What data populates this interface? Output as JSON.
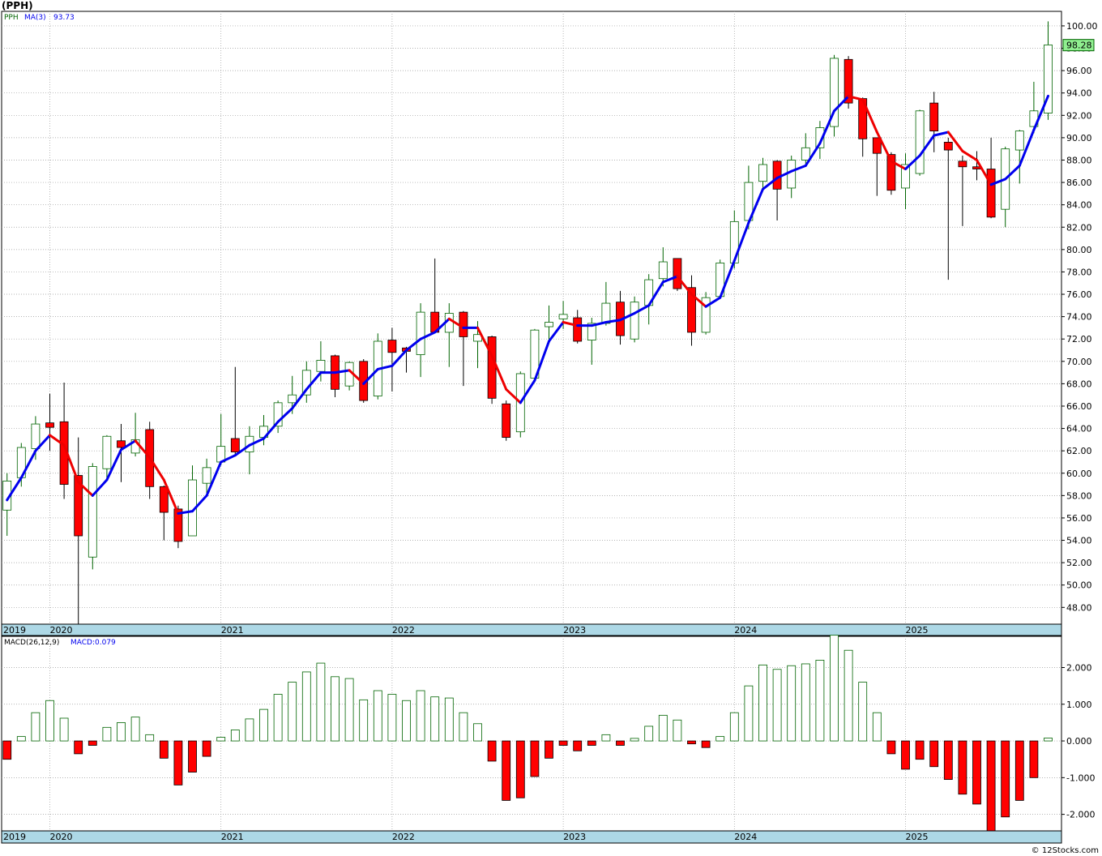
{
  "header": {
    "symbol_label": "(PPH)"
  },
  "credit": "© 12Stocks.com",
  "colors": {
    "up_candle": "#006400",
    "down_candle": "#ff0000",
    "ma_up": "#0000ee",
    "ma_down": "#ee0000",
    "axis_band": "#add8e6",
    "last_price_box": "#90ee90"
  },
  "chart_data": [
    {
      "type": "candlestick",
      "legend": {
        "symbol": "PPH",
        "ma_label": "MA(3)",
        "ma_value": "93.73"
      },
      "last_price_label": "98.28",
      "ylim": [
        46.5,
        101.3
      ],
      "y_ticks": [
        48,
        50,
        52,
        54,
        56,
        58,
        60,
        62,
        64,
        66,
        68,
        70,
        72,
        74,
        76,
        78,
        80,
        82,
        84,
        86,
        88,
        90,
        92,
        94,
        96,
        98,
        100
      ],
      "y_tick_labels": [
        "48.00",
        "50.00",
        "52.00",
        "54.00",
        "56.00",
        "58.00",
        "60.00",
        "62.00",
        "64.00",
        "66.00",
        "68.00",
        "70.00",
        "72.00",
        "74.00",
        "76.00",
        "78.00",
        "80.00",
        "82.00",
        "84.00",
        "86.00",
        "88.00",
        "90.00",
        "92.00",
        "94.00",
        "96.00",
        "98.00",
        "100.00"
      ],
      "x_labels": [
        {
          "label": "2019",
          "index": -3
        },
        {
          "label": "2020",
          "index": 0
        },
        {
          "label": "2021",
          "index": 12
        },
        {
          "label": "2022",
          "index": 24
        },
        {
          "label": "2023",
          "index": 36
        },
        {
          "label": "2024",
          "index": 48
        },
        {
          "label": "2025",
          "index": 60
        }
      ],
      "candles": [
        {
          "i": -3,
          "o": 56.7,
          "h": 60.0,
          "l": 54.4,
          "c": 59.3
        },
        {
          "i": -2,
          "o": 59.6,
          "h": 62.7,
          "l": 58.8,
          "c": 62.3
        },
        {
          "i": -1,
          "o": 62.2,
          "h": 65.1,
          "l": 61.2,
          "c": 64.4
        },
        {
          "i": 0,
          "o": 64.5,
          "h": 67.1,
          "l": 62.0,
          "c": 64.1
        },
        {
          "i": 1,
          "o": 64.6,
          "h": 68.1,
          "l": 57.7,
          "c": 59.0
        },
        {
          "i": 2,
          "o": 59.8,
          "h": 63.2,
          "l": 45.1,
          "c": 54.4
        },
        {
          "i": 3,
          "o": 52.5,
          "h": 60.9,
          "l": 51.4,
          "c": 60.6
        },
        {
          "i": 4,
          "o": 60.4,
          "h": 63.4,
          "l": 59.3,
          "c": 63.3
        },
        {
          "i": 5,
          "o": 62.9,
          "h": 64.4,
          "l": 59.2,
          "c": 62.3
        },
        {
          "i": 6,
          "o": 61.8,
          "h": 65.4,
          "l": 61.5,
          "c": 63.0
        },
        {
          "i": 7,
          "o": 63.9,
          "h": 64.6,
          "l": 57.7,
          "c": 58.8
        },
        {
          "i": 8,
          "o": 58.8,
          "h": 58.9,
          "l": 54.0,
          "c": 56.5
        },
        {
          "i": 9,
          "o": 56.8,
          "h": 57.1,
          "l": 53.3,
          "c": 53.9
        },
        {
          "i": 10,
          "o": 54.4,
          "h": 60.7,
          "l": 54.4,
          "c": 59.4
        },
        {
          "i": 11,
          "o": 59.1,
          "h": 61.3,
          "l": 58.2,
          "c": 60.5
        },
        {
          "i": 12,
          "o": 61.0,
          "h": 65.3,
          "l": 60.7,
          "c": 62.4
        },
        {
          "i": 13,
          "o": 63.1,
          "h": 69.5,
          "l": 61.7,
          "c": 61.9
        },
        {
          "i": 14,
          "o": 61.9,
          "h": 64.2,
          "l": 59.9,
          "c": 63.3
        },
        {
          "i": 15,
          "o": 63.2,
          "h": 65.2,
          "l": 62.5,
          "c": 64.2
        },
        {
          "i": 16,
          "o": 64.2,
          "h": 66.5,
          "l": 63.6,
          "c": 66.3
        },
        {
          "i": 17,
          "o": 66.3,
          "h": 68.7,
          "l": 65.3,
          "c": 67.0
        },
        {
          "i": 18,
          "o": 67.0,
          "h": 70.0,
          "l": 66.3,
          "c": 69.2
        },
        {
          "i": 19,
          "o": 69.1,
          "h": 71.8,
          "l": 68.2,
          "c": 70.1
        },
        {
          "i": 20,
          "o": 70.5,
          "h": 70.6,
          "l": 66.8,
          "c": 67.5
        },
        {
          "i": 21,
          "o": 67.8,
          "h": 70.0,
          "l": 67.4,
          "c": 69.9
        },
        {
          "i": 22,
          "o": 70.0,
          "h": 70.2,
          "l": 66.3,
          "c": 66.5
        },
        {
          "i": 23,
          "o": 66.9,
          "h": 72.5,
          "l": 66.6,
          "c": 71.8
        },
        {
          "i": 24,
          "o": 71.9,
          "h": 73.0,
          "l": 67.3,
          "c": 70.8
        },
        {
          "i": 25,
          "o": 71.2,
          "h": 71.3,
          "l": 69.0,
          "c": 70.9
        },
        {
          "i": 26,
          "o": 70.6,
          "h": 75.2,
          "l": 68.6,
          "c": 74.4
        },
        {
          "i": 27,
          "o": 74.4,
          "h": 79.2,
          "l": 72.7,
          "c": 72.6
        },
        {
          "i": 28,
          "o": 72.6,
          "h": 75.2,
          "l": 69.5,
          "c": 74.3
        },
        {
          "i": 29,
          "o": 74.4,
          "h": 74.5,
          "l": 67.8,
          "c": 72.2
        },
        {
          "i": 30,
          "o": 71.8,
          "h": 73.6,
          "l": 69.4,
          "c": 72.4
        },
        {
          "i": 31,
          "o": 72.2,
          "h": 72.3,
          "l": 66.2,
          "c": 66.7
        },
        {
          "i": 32,
          "o": 66.2,
          "h": 66.5,
          "l": 62.9,
          "c": 63.2
        },
        {
          "i": 33,
          "o": 63.7,
          "h": 69.1,
          "l": 63.2,
          "c": 68.9
        },
        {
          "i": 34,
          "o": 68.5,
          "h": 72.9,
          "l": 68.1,
          "c": 72.8
        },
        {
          "i": 35,
          "o": 73.1,
          "h": 75.0,
          "l": 71.8,
          "c": 73.5
        },
        {
          "i": 36,
          "o": 73.8,
          "h": 75.4,
          "l": 72.9,
          "c": 74.2
        },
        {
          "i": 37,
          "o": 73.9,
          "h": 74.6,
          "l": 71.6,
          "c": 71.8
        },
        {
          "i": 38,
          "o": 71.9,
          "h": 73.9,
          "l": 69.7,
          "c": 73.4
        },
        {
          "i": 39,
          "o": 73.4,
          "h": 77.1,
          "l": 73.2,
          "c": 75.2
        },
        {
          "i": 40,
          "o": 75.3,
          "h": 76.3,
          "l": 71.5,
          "c": 72.3
        },
        {
          "i": 41,
          "o": 72.0,
          "h": 75.8,
          "l": 71.7,
          "c": 75.3
        },
        {
          "i": 42,
          "o": 75.0,
          "h": 77.8,
          "l": 73.3,
          "c": 77.3
        },
        {
          "i": 43,
          "o": 77.4,
          "h": 80.2,
          "l": 76.7,
          "c": 78.9
        },
        {
          "i": 44,
          "o": 79.2,
          "h": 79.2,
          "l": 76.3,
          "c": 76.5
        },
        {
          "i": 45,
          "o": 76.6,
          "h": 77.7,
          "l": 71.4,
          "c": 72.6
        },
        {
          "i": 46,
          "o": 72.6,
          "h": 76.2,
          "l": 72.4,
          "c": 75.7
        },
        {
          "i": 47,
          "o": 75.8,
          "h": 79.1,
          "l": 75.6,
          "c": 78.8
        },
        {
          "i": 48,
          "o": 78.8,
          "h": 83.5,
          "l": 78.3,
          "c": 82.5
        },
        {
          "i": 49,
          "o": 82.6,
          "h": 87.5,
          "l": 81.8,
          "c": 86.0
        },
        {
          "i": 50,
          "o": 86.1,
          "h": 88.2,
          "l": 85.5,
          "c": 87.6
        },
        {
          "i": 51,
          "o": 87.9,
          "h": 88.0,
          "l": 82.6,
          "c": 85.4
        },
        {
          "i": 52,
          "o": 85.5,
          "h": 88.4,
          "l": 84.6,
          "c": 88.0
        },
        {
          "i": 53,
          "o": 88.0,
          "h": 90.4,
          "l": 87.5,
          "c": 89.1
        },
        {
          "i": 54,
          "o": 89.1,
          "h": 91.5,
          "l": 88.1,
          "c": 90.9
        },
        {
          "i": 55,
          "o": 91.0,
          "h": 97.4,
          "l": 90.1,
          "c": 97.1
        },
        {
          "i": 56,
          "o": 97.0,
          "h": 97.3,
          "l": 92.6,
          "c": 93.1
        },
        {
          "i": 57,
          "o": 93.5,
          "h": 93.6,
          "l": 88.3,
          "c": 89.9
        },
        {
          "i": 58,
          "o": 90.0,
          "h": 90.0,
          "l": 84.8,
          "c": 88.6
        },
        {
          "i": 59,
          "o": 88.5,
          "h": 88.7,
          "l": 84.9,
          "c": 85.3
        },
        {
          "i": 60,
          "o": 85.5,
          "h": 88.6,
          "l": 83.6,
          "c": 87.6
        },
        {
          "i": 61,
          "o": 86.8,
          "h": 92.5,
          "l": 86.6,
          "c": 92.4
        },
        {
          "i": 62,
          "o": 93.1,
          "h": 94.1,
          "l": 88.7,
          "c": 90.6
        },
        {
          "i": 63,
          "o": 89.6,
          "h": 90.0,
          "l": 77.3,
          "c": 88.9
        },
        {
          "i": 64,
          "o": 87.9,
          "h": 88.4,
          "l": 82.1,
          "c": 87.4
        },
        {
          "i": 65,
          "o": 87.4,
          "h": 88.8,
          "l": 86.2,
          "c": 87.2
        },
        {
          "i": 66,
          "o": 87.2,
          "h": 90.0,
          "l": 82.8,
          "c": 82.9
        },
        {
          "i": 67,
          "o": 83.6,
          "h": 89.2,
          "l": 82.0,
          "c": 89.0
        },
        {
          "i": 68,
          "o": 88.9,
          "h": 90.7,
          "l": 85.9,
          "c": 90.6
        },
        {
          "i": 69,
          "o": 91.0,
          "h": 95.0,
          "l": 90.4,
          "c": 92.4
        },
        {
          "i": 70,
          "o": 92.2,
          "h": 100.4,
          "l": 91.6,
          "c": 98.3
        }
      ],
      "ma": {
        "name": "MA(3)",
        "points": [
          {
            "i": -3,
            "v": 57.6
          },
          {
            "i": -2,
            "v": 59.6
          },
          {
            "i": -1,
            "v": 62.0
          },
          {
            "i": 0,
            "v": 63.4
          },
          {
            "i": 1,
            "v": 62.5
          },
          {
            "i": 2,
            "v": 59.2
          },
          {
            "i": 3,
            "v": 58.0
          },
          {
            "i": 4,
            "v": 59.4
          },
          {
            "i": 5,
            "v": 62.1
          },
          {
            "i": 6,
            "v": 62.9
          },
          {
            "i": 7,
            "v": 61.4
          },
          {
            "i": 8,
            "v": 59.4
          },
          {
            "i": 9,
            "v": 56.4
          },
          {
            "i": 10,
            "v": 56.6
          },
          {
            "i": 11,
            "v": 58.0
          },
          {
            "i": 12,
            "v": 61.0
          },
          {
            "i": 13,
            "v": 61.6
          },
          {
            "i": 14,
            "v": 62.5
          },
          {
            "i": 15,
            "v": 63.1
          },
          {
            "i": 16,
            "v": 64.6
          },
          {
            "i": 17,
            "v": 65.8
          },
          {
            "i": 18,
            "v": 67.5
          },
          {
            "i": 19,
            "v": 69.0
          },
          {
            "i": 20,
            "v": 69.0
          },
          {
            "i": 21,
            "v": 69.2
          },
          {
            "i": 22,
            "v": 68.0
          },
          {
            "i": 23,
            "v": 69.3
          },
          {
            "i": 24,
            "v": 69.6
          },
          {
            "i": 25,
            "v": 71.0
          },
          {
            "i": 26,
            "v": 72.0
          },
          {
            "i": 27,
            "v": 72.6
          },
          {
            "i": 28,
            "v": 73.8
          },
          {
            "i": 29,
            "v": 73.0
          },
          {
            "i": 30,
            "v": 73.0
          },
          {
            "i": 31,
            "v": 70.5
          },
          {
            "i": 32,
            "v": 67.5
          },
          {
            "i": 33,
            "v": 66.3
          },
          {
            "i": 34,
            "v": 68.3
          },
          {
            "i": 35,
            "v": 71.8
          },
          {
            "i": 36,
            "v": 73.5
          },
          {
            "i": 37,
            "v": 73.2
          },
          {
            "i": 38,
            "v": 73.2
          },
          {
            "i": 39,
            "v": 73.5
          },
          {
            "i": 40,
            "v": 73.7
          },
          {
            "i": 41,
            "v": 74.3
          },
          {
            "i": 42,
            "v": 75.0
          },
          {
            "i": 43,
            "v": 77.1
          },
          {
            "i": 44,
            "v": 77.6
          },
          {
            "i": 45,
            "v": 76.0
          },
          {
            "i": 46,
            "v": 74.9
          },
          {
            "i": 47,
            "v": 75.7
          },
          {
            "i": 48,
            "v": 79.0
          },
          {
            "i": 49,
            "v": 82.4
          },
          {
            "i": 50,
            "v": 85.4
          },
          {
            "i": 51,
            "v": 86.4
          },
          {
            "i": 52,
            "v": 87.0
          },
          {
            "i": 53,
            "v": 87.5
          },
          {
            "i": 54,
            "v": 89.5
          },
          {
            "i": 55,
            "v": 92.4
          },
          {
            "i": 56,
            "v": 93.7
          },
          {
            "i": 57,
            "v": 93.4
          },
          {
            "i": 58,
            "v": 90.5
          },
          {
            "i": 59,
            "v": 87.9
          },
          {
            "i": 60,
            "v": 87.2
          },
          {
            "i": 61,
            "v": 88.4
          },
          {
            "i": 62,
            "v": 90.2
          },
          {
            "i": 63,
            "v": 90.5
          },
          {
            "i": 64,
            "v": 88.8
          },
          {
            "i": 65,
            "v": 88.0
          },
          {
            "i": 66,
            "v": 85.8
          },
          {
            "i": 67,
            "v": 86.3
          },
          {
            "i": 68,
            "v": 87.5
          },
          {
            "i": 69,
            "v": 90.7
          },
          {
            "i": 70,
            "v": 93.73
          }
        ]
      }
    },
    {
      "type": "bar",
      "legend": {
        "name": "MACD(26,12,9)",
        "value_label": "MACD:0.079"
      },
      "ylim": [
        -2.45,
        2.85
      ],
      "y_ticks": [
        -2,
        -1,
        0,
        1,
        2
      ],
      "y_tick_labels": [
        "-2.000",
        "-1.000",
        "0.000",
        "1.000",
        "2.000"
      ],
      "x_labels": [
        {
          "label": "2019",
          "index": -3
        },
        {
          "label": "2020",
          "index": 0
        },
        {
          "label": "2021",
          "index": 12
        },
        {
          "label": "2022",
          "index": 24
        },
        {
          "label": "2023",
          "index": 36
        },
        {
          "label": "2024",
          "index": 48
        },
        {
          "label": "2025",
          "index": 60
        }
      ],
      "values": [
        -0.5,
        0.12,
        0.77,
        1.1,
        0.62,
        -0.35,
        -0.12,
        0.37,
        0.5,
        0.65,
        0.17,
        -0.47,
        -1.2,
        -0.85,
        -0.42,
        0.1,
        0.3,
        0.6,
        0.86,
        1.27,
        1.6,
        1.88,
        2.12,
        1.75,
        1.7,
        1.12,
        1.37,
        1.27,
        1.1,
        1.37,
        1.2,
        1.17,
        0.77,
        0.47,
        -0.55,
        -1.62,
        -1.55,
        -0.97,
        -0.47,
        -0.12,
        -0.27,
        -0.12,
        0.17,
        -0.12,
        0.07,
        0.4,
        0.7,
        0.57,
        -0.08,
        -0.18,
        0.12,
        0.77,
        1.5,
        2.07,
        1.95,
        2.05,
        2.1,
        2.2,
        2.88,
        2.47,
        1.6,
        0.77,
        -0.35,
        -0.77,
        -0.5,
        -0.7,
        -1.05,
        -1.45,
        -1.72,
        -2.45,
        -2.07,
        -1.62,
        -1.0,
        0.079
      ],
      "start_index": -3
    }
  ]
}
